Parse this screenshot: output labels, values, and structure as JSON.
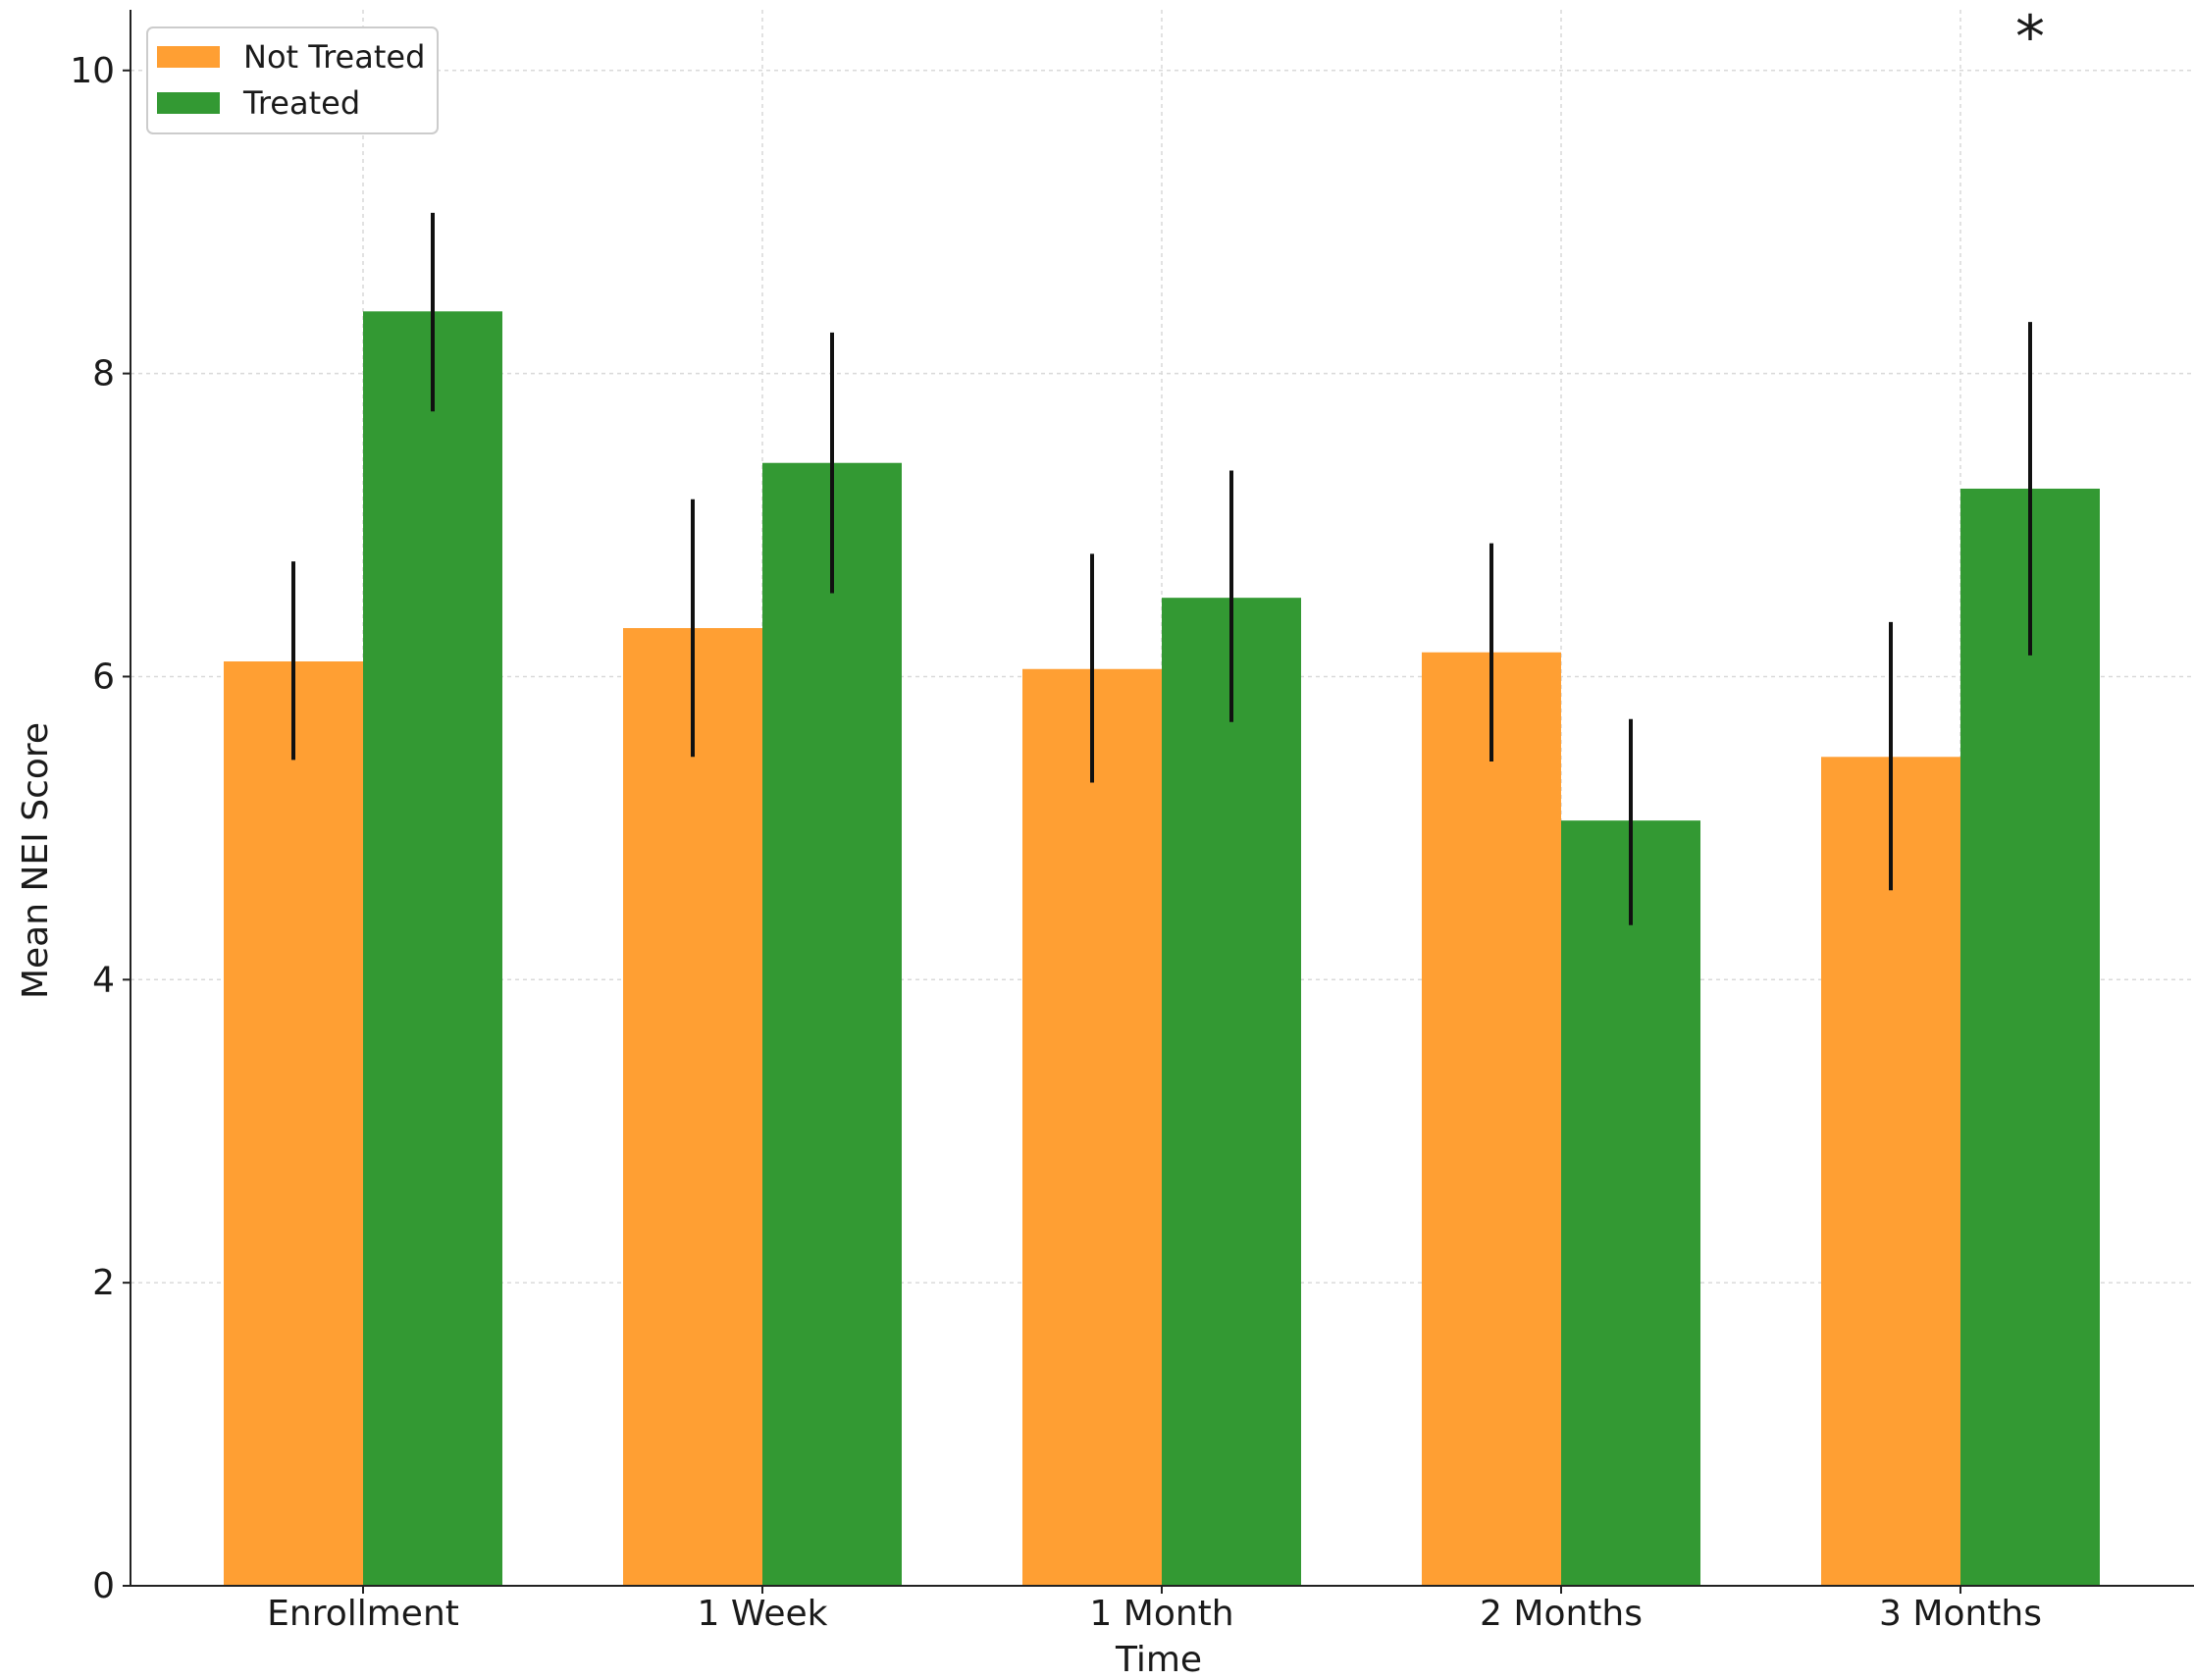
{
  "chart_data": {
    "type": "bar",
    "title": "",
    "xlabel": "Time",
    "ylabel": "Mean NEI Score",
    "ylim": [
      0,
      10.4
    ],
    "yticks": [
      "0",
      "2",
      "4",
      "6",
      "8",
      "10"
    ],
    "categories": [
      "Enrollment",
      "1 Week",
      "1 Month",
      "2 Months",
      "3 Months"
    ],
    "series": [
      {
        "name": "Not Treated",
        "color": "#ff9f33",
        "values": [
          6.1,
          6.32,
          6.05,
          6.16,
          5.47
        ],
        "error_low": [
          5.45,
          5.47,
          5.3,
          5.44,
          4.59
        ],
        "error_high": [
          6.76,
          7.17,
          6.81,
          6.88,
          6.36
        ]
      },
      {
        "name": "Treated",
        "color": "#339933",
        "values": [
          8.41,
          7.41,
          6.52,
          5.05,
          7.24
        ],
        "error_low": [
          7.75,
          6.55,
          5.7,
          4.36,
          6.14
        ],
        "error_high": [
          9.06,
          8.27,
          7.36,
          5.72,
          8.34
        ]
      }
    ],
    "grid": true,
    "legend": "top-left",
    "annotations": [
      {
        "text": "*",
        "category": "3 Months",
        "series": "Treated"
      }
    ]
  }
}
